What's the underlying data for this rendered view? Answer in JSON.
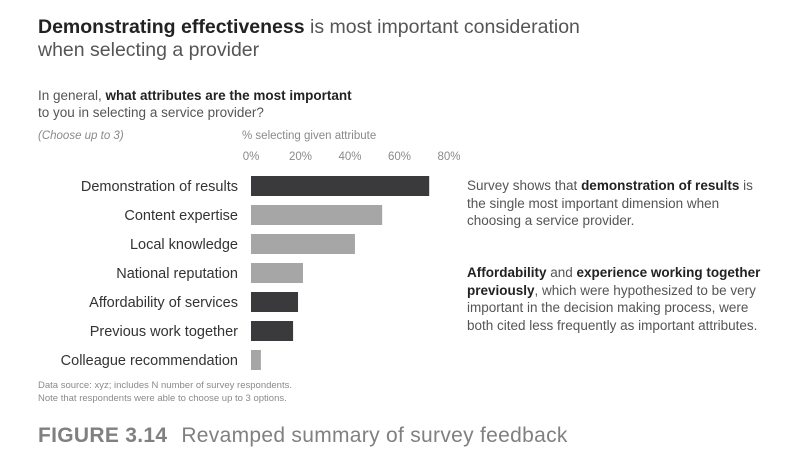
{
  "header": {
    "title_bold": "Demonstrating effectiveness",
    "title_rest": " is most important consideration",
    "title_line2": "when selecting a provider"
  },
  "question": {
    "prefix": "In general, ",
    "bold": "what attributes are the most important",
    "rest": "to you in selecting a service provider?",
    "note": "(Choose up to 3)"
  },
  "colors": {
    "dark": "#3a3a3c",
    "light": "#a6a6a6"
  },
  "chart_data": {
    "type": "bar",
    "orientation": "horizontal",
    "axis_title": "% selecting given attribute",
    "xlim": [
      0,
      80
    ],
    "ticks": [
      "0%",
      "20%",
      "40%",
      "60%",
      "80%"
    ],
    "tick_values": [
      0,
      20,
      40,
      60,
      80
    ],
    "categories": [
      "Demonstration of results",
      "Content expertise",
      "Local knowledge",
      "National reputation",
      "Affordability of services",
      "Previous work together",
      "Colleague recommendation"
    ],
    "values": [
      72,
      53,
      42,
      21,
      19,
      17,
      4
    ],
    "highlighted": [
      true,
      false,
      false,
      false,
      true,
      true,
      false
    ],
    "grid": false
  },
  "annotations": {
    "p1": {
      "a": "Survey shows that ",
      "b": "demonstration of results",
      "c": " is the single most important dimension when choosing a service provider."
    },
    "p2": {
      "b1": "Affordability",
      "a": " and ",
      "b2": "experience working together previously",
      "c": ", which were hypothesized to be very important in the decision making process, were both cited less frequently as important attributes."
    }
  },
  "source": {
    "line1": "Data source: xyz; includes N number of survey respondents.",
    "line2": "Note that respondents were able to choose up to 3 options."
  },
  "figure": {
    "number": "FIGURE 3.14",
    "caption": "Revamped summary of survey feedback"
  }
}
